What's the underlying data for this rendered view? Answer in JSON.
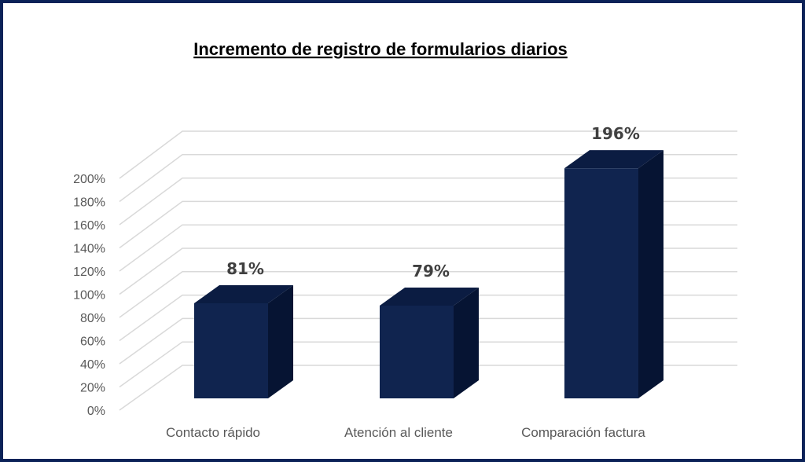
{
  "chart_data": {
    "type": "bar",
    "title": "Incremento de registro de formularios diarios",
    "categories": [
      "Contacto rápido",
      "Atención al cliente",
      "Comparación factura"
    ],
    "values": [
      81,
      79,
      196
    ],
    "data_labels": [
      "81%",
      "79%",
      "196%"
    ],
    "ylim": [
      0,
      200
    ],
    "ytick_step": 20,
    "ytick_labels": [
      "0%",
      "20%",
      "40%",
      "60%",
      "80%",
      "100%",
      "120%",
      "140%",
      "160%",
      "180%",
      "200%"
    ],
    "xlabel": "",
    "ylabel": "",
    "grid": true,
    "style": "3d-column",
    "colors": {
      "front": "#10244f",
      "top": "#0b1c42",
      "side": "#061433",
      "grid": "#d9d9d9",
      "border": "#0b2258"
    }
  }
}
